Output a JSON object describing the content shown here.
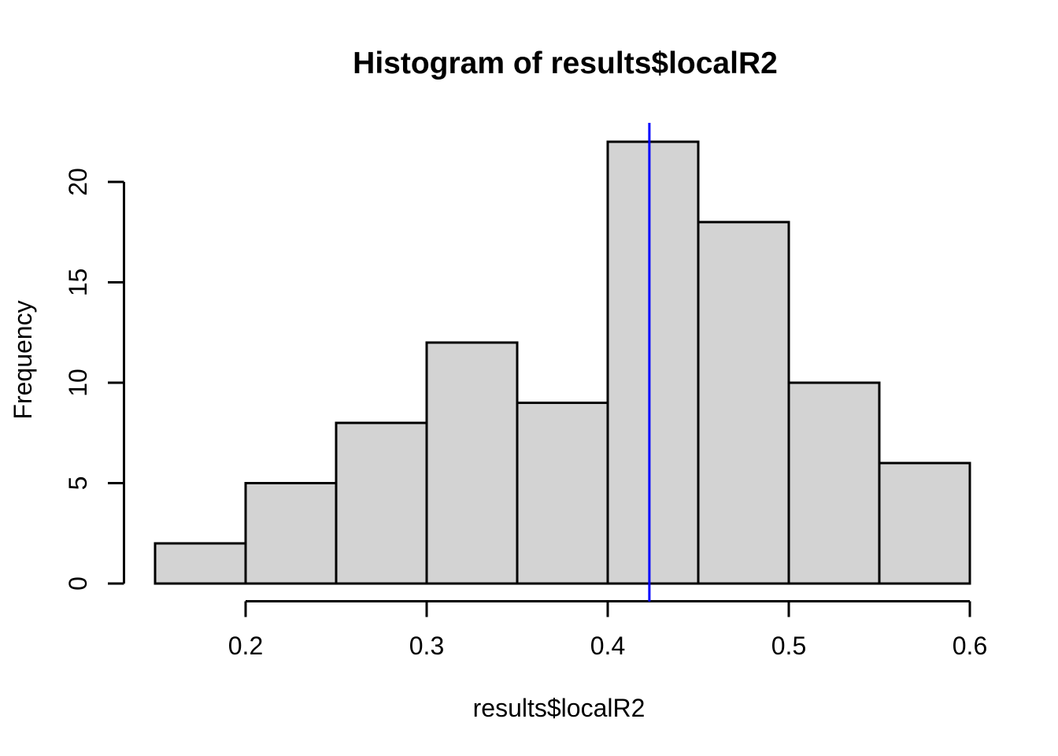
{
  "chart_data": {
    "type": "bar",
    "subtype": "histogram",
    "title": "Histogram of results$localR2",
    "xlabel": "results$localR2",
    "ylabel": "Frequency",
    "bins": {
      "start": 0.15,
      "width": 0.05,
      "counts": [
        2,
        5,
        8,
        12,
        9,
        22,
        18,
        10,
        6
      ]
    },
    "x_ticks": {
      "values": [
        0.2,
        0.3,
        0.4,
        0.5,
        0.6
      ],
      "labels": [
        "0.2",
        "0.3",
        "0.4",
        "0.5",
        "0.6"
      ]
    },
    "y_ticks": {
      "values": [
        0,
        5,
        10,
        15,
        20
      ],
      "labels": [
        "0",
        "5",
        "10",
        "15",
        "20"
      ]
    },
    "xlim": [
      0.15,
      0.6
    ],
    "ylim": [
      0,
      22
    ],
    "grid": false,
    "legend": "none",
    "vline": {
      "x": 0.423,
      "color": "#0000ff"
    },
    "colors": {
      "bar_fill": "#d3d3d3",
      "bar_stroke": "#000000",
      "axis": "#000000",
      "text": "#000000",
      "background": "#ffffff"
    }
  }
}
